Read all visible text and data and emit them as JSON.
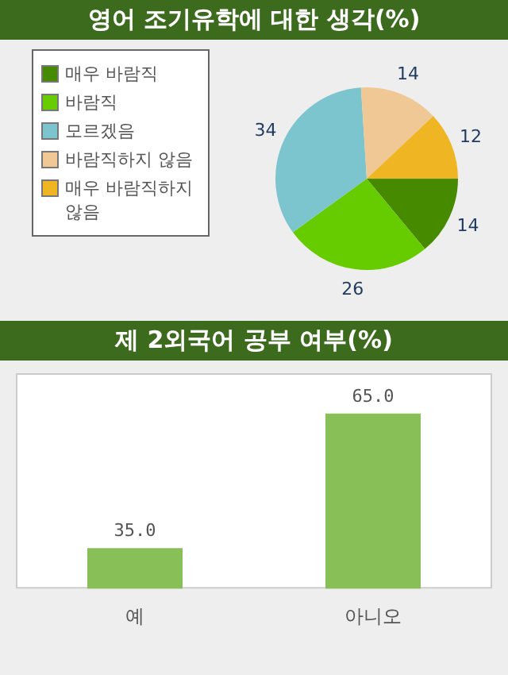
{
  "chart_data": [
    {
      "type": "pie",
      "title": "영어 조기유학에 대한 생각(%)",
      "categories": [
        "매우 바람직",
        "바람직",
        "모르겠음",
        "바람직하지 않음",
        "매우 바람직하지 않음"
      ],
      "values": [
        14,
        26,
        34,
        14,
        12
      ],
      "colors": [
        "#468a00",
        "#66cc00",
        "#7cc5cf",
        "#efc895",
        "#efb523"
      ],
      "data_labels": true,
      "legend": "left"
    },
    {
      "type": "bar",
      "title": "제 2외국어 공부 여부(%)",
      "categories": [
        "예",
        "아니오"
      ],
      "values": [
        35,
        65
      ],
      "value_labels": [
        "35.0",
        "65.0"
      ],
      "color": "#88c057",
      "ylim": [
        26,
        74
      ],
      "tick_labels": "x"
    }
  ]
}
